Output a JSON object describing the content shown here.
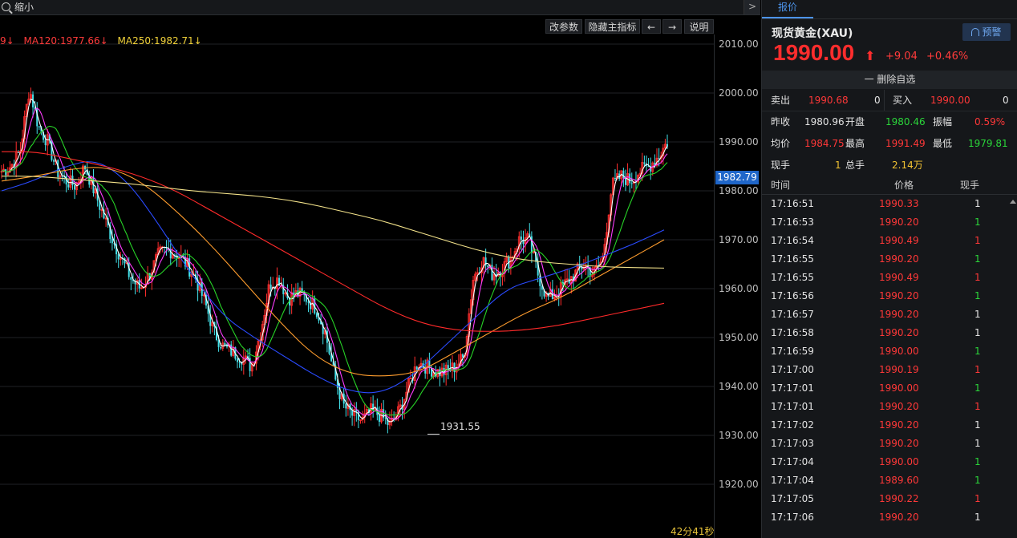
{
  "toolbar": {
    "zoom_label": "缩小",
    "collapse_glyph": ">",
    "buttons": [
      "改参数",
      "隐藏主指标",
      "←",
      "→",
      "说明"
    ]
  },
  "ma_legend": [
    {
      "text": "9↓",
      "color": "#ff3b3b"
    },
    {
      "text": "MA120:1977.66↓",
      "color": "#ff3b3b"
    },
    {
      "text": "MA250:1982.71↓",
      "color": "#f1d23a"
    }
  ],
  "price_axis": {
    "ticks": [
      "2010.00",
      "2000.00",
      "1990.00",
      "1980.00",
      "1970.00",
      "1960.00",
      "1950.00",
      "1940.00",
      "1930.00",
      "1920.00"
    ],
    "current": "1982.79"
  },
  "chart_data": {
    "type": "candlestick",
    "y_range": [
      1915,
      2012
    ],
    "low_marker": "1931.55",
    "timer": "42分41秒",
    "close_path": [
      1984,
      1985,
      1988,
      2001,
      1993,
      1990,
      1984,
      1982,
      1981,
      1985,
      1980,
      1975,
      1970,
      1966,
      1962,
      1960,
      1963,
      1967,
      1968,
      1967,
      1965,
      1962,
      1957,
      1951,
      1948,
      1947,
      1946,
      1944,
      1951,
      1961,
      1962,
      1958,
      1959,
      1958,
      1956,
      1951,
      1942,
      1936,
      1934,
      1933,
      1935,
      1934,
      1932,
      1935,
      1940,
      1945,
      1944,
      1943,
      1943,
      1944,
      1946,
      1962,
      1966,
      1963,
      1964,
      1966,
      1970,
      1970,
      1963,
      1958,
      1959,
      1961,
      1963,
      1965,
      1963,
      1966,
      1981,
      1983,
      1982,
      1984,
      1985,
      1987,
      1990
    ],
    "ma_series": [
      {
        "name": "MA5",
        "color": "#ffffff"
      },
      {
        "name": "MA10",
        "color": "#ff3cff"
      },
      {
        "name": "MA20",
        "color": "#27d327"
      },
      {
        "name": "MA60",
        "color": "#2a4bff"
      },
      {
        "name": "MA100",
        "color": "#ff9d2e"
      },
      {
        "name": "MA120",
        "color": "#ff2a2a"
      },
      {
        "name": "MA250",
        "color": "#f3e28a"
      }
    ],
    "ma_values": {
      "MA250": [
        1983,
        1983,
        1982.5,
        1982,
        1981.5,
        1980.8,
        1980,
        1979.5,
        1979,
        1978.2,
        1977,
        1975.5,
        1974,
        1972,
        1970,
        1968,
        1966.5,
        1965.5,
        1965,
        1964.5,
        1964.3,
        1964.2
      ],
      "MA120": [
        1988,
        1988,
        1986.5,
        1985,
        1983,
        1980,
        1976,
        1972,
        1968,
        1964,
        1960,
        1956,
        1953,
        1951.5,
        1951.2,
        1951.5,
        1952.5,
        1954,
        1955.5,
        1957
      ],
      "MA100": [
        1982,
        1983,
        1984.5,
        1985,
        1982,
        1976,
        1969,
        1961,
        1953,
        1946,
        1942.5,
        1942,
        1943,
        1947,
        1951,
        1955,
        1958,
        1962,
        1966,
        1970
      ],
      "MA60": [
        1980,
        1982,
        1985,
        1986.5,
        1982,
        1973,
        1963,
        1954.5,
        1950,
        1946,
        1942,
        1939,
        1938.5,
        1942,
        1948,
        1954,
        1960,
        1962,
        1964,
        1966.5,
        1969,
        1972
      ]
    }
  },
  "panel": {
    "tab": "报价",
    "name": "现货黄金(XAU)",
    "alert": "预警",
    "price": "1990.00",
    "arrow": "⬆",
    "change": "+9.04",
    "change_pct": "+0.46%",
    "watch": "一 删除自选",
    "sell_label": "卖出",
    "sell_price": "1990.68",
    "sell_qty": "0",
    "buy_label": "买入",
    "buy_price": "1990.00",
    "buy_qty": "0",
    "prev_close_label": "昨收",
    "prev_close": "1980.96",
    "open_label": "开盘",
    "open": "1980.46",
    "amp_label": "振幅",
    "amp": "0.59%",
    "avg_label": "均价",
    "avg": "1984.75",
    "high_label": "最高",
    "high": "1991.49",
    "low_label": "最低",
    "low": "1979.81",
    "cur_vol_label": "现手",
    "cur_vol": "1",
    "total_vol_label": "总手",
    "total_vol": "2.14万",
    "ticks_head": {
      "time": "时间",
      "price": "价格",
      "vol": "现手"
    },
    "ticks": [
      {
        "time": "17:16:51",
        "price": "1990.33",
        "vol": "1",
        "vcolor": "white"
      },
      {
        "time": "17:16:53",
        "price": "1990.20",
        "vol": "1",
        "vcolor": "green"
      },
      {
        "time": "17:16:54",
        "price": "1990.49",
        "vol": "1",
        "vcolor": "red"
      },
      {
        "time": "17:16:55",
        "price": "1990.20",
        "vol": "1",
        "vcolor": "green"
      },
      {
        "time": "17:16:55",
        "price": "1990.49",
        "vol": "1",
        "vcolor": "red"
      },
      {
        "time": "17:16:56",
        "price": "1990.20",
        "vol": "1",
        "vcolor": "green"
      },
      {
        "time": "17:16:57",
        "price": "1990.20",
        "vol": "1",
        "vcolor": "white"
      },
      {
        "time": "17:16:58",
        "price": "1990.20",
        "vol": "1",
        "vcolor": "white"
      },
      {
        "time": "17:16:59",
        "price": "1990.00",
        "vol": "1",
        "vcolor": "green"
      },
      {
        "time": "17:17:00",
        "price": "1990.19",
        "vol": "1",
        "vcolor": "red"
      },
      {
        "time": "17:17:01",
        "price": "1990.00",
        "vol": "1",
        "vcolor": "green"
      },
      {
        "time": "17:17:01",
        "price": "1990.20",
        "vol": "1",
        "vcolor": "red"
      },
      {
        "time": "17:17:02",
        "price": "1990.20",
        "vol": "1",
        "vcolor": "white"
      },
      {
        "time": "17:17:03",
        "price": "1990.20",
        "vol": "1",
        "vcolor": "white"
      },
      {
        "time": "17:17:04",
        "price": "1990.00",
        "vol": "1",
        "vcolor": "green"
      },
      {
        "time": "17:17:04",
        "price": "1989.60",
        "vol": "1",
        "vcolor": "green"
      },
      {
        "time": "17:17:05",
        "price": "1990.22",
        "vol": "1",
        "vcolor": "red"
      },
      {
        "time": "17:17:06",
        "price": "1990.20",
        "vol": "1",
        "vcolor": "white"
      }
    ]
  }
}
